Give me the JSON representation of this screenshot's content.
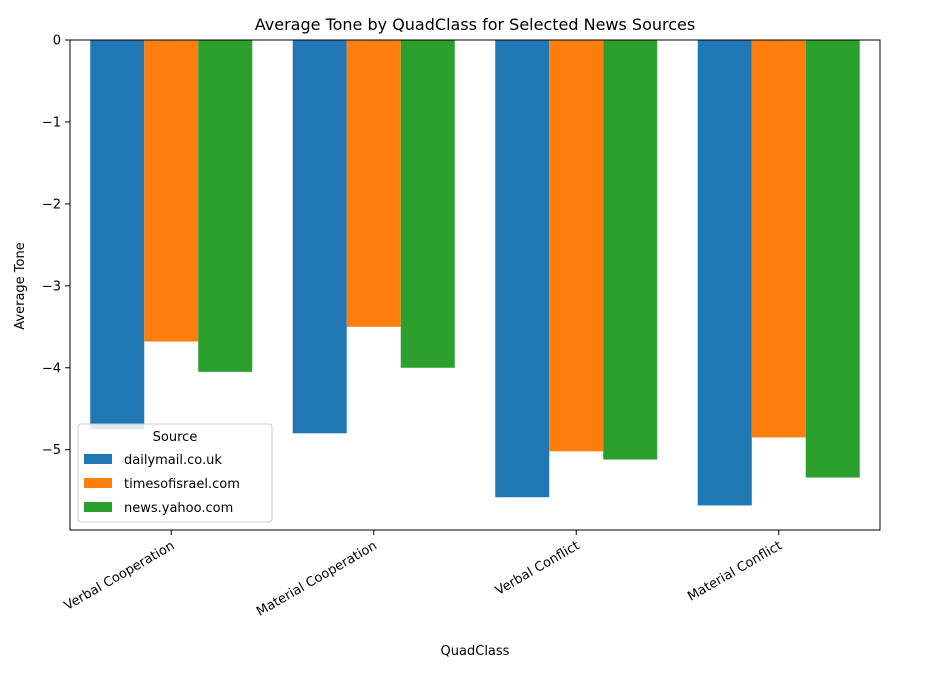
{
  "chart_data": {
    "type": "bar",
    "title": "Average Tone by QuadClass for Selected News Sources",
    "xlabel": "QuadClass",
    "ylabel": "Average Tone",
    "categories": [
      "Verbal Cooperation",
      "Material Cooperation",
      "Verbal Conflict",
      "Material Conflict"
    ],
    "series": [
      {
        "name": "dailymail.co.uk",
        "color": "#1f77b4",
        "values": [
          -4.75,
          -4.8,
          -5.58,
          -5.68
        ]
      },
      {
        "name": "timesofisrael.com",
        "color": "#ff7f0e",
        "values": [
          -3.68,
          -3.5,
          -5.02,
          -4.85
        ]
      },
      {
        "name": "news.yahoo.com",
        "color": "#2ca02c",
        "values": [
          -4.05,
          -4.0,
          -5.12,
          -5.34
        ]
      }
    ],
    "ylim": [
      -5.98,
      0
    ],
    "yticks": [
      0,
      -1,
      -2,
      -3,
      -4,
      -5
    ],
    "ytick_labels": [
      "0",
      "−1",
      "−2",
      "−3",
      "−4",
      "−5"
    ],
    "legend": {
      "title": "Source",
      "placement": "lower-left"
    },
    "grid": false
  }
}
